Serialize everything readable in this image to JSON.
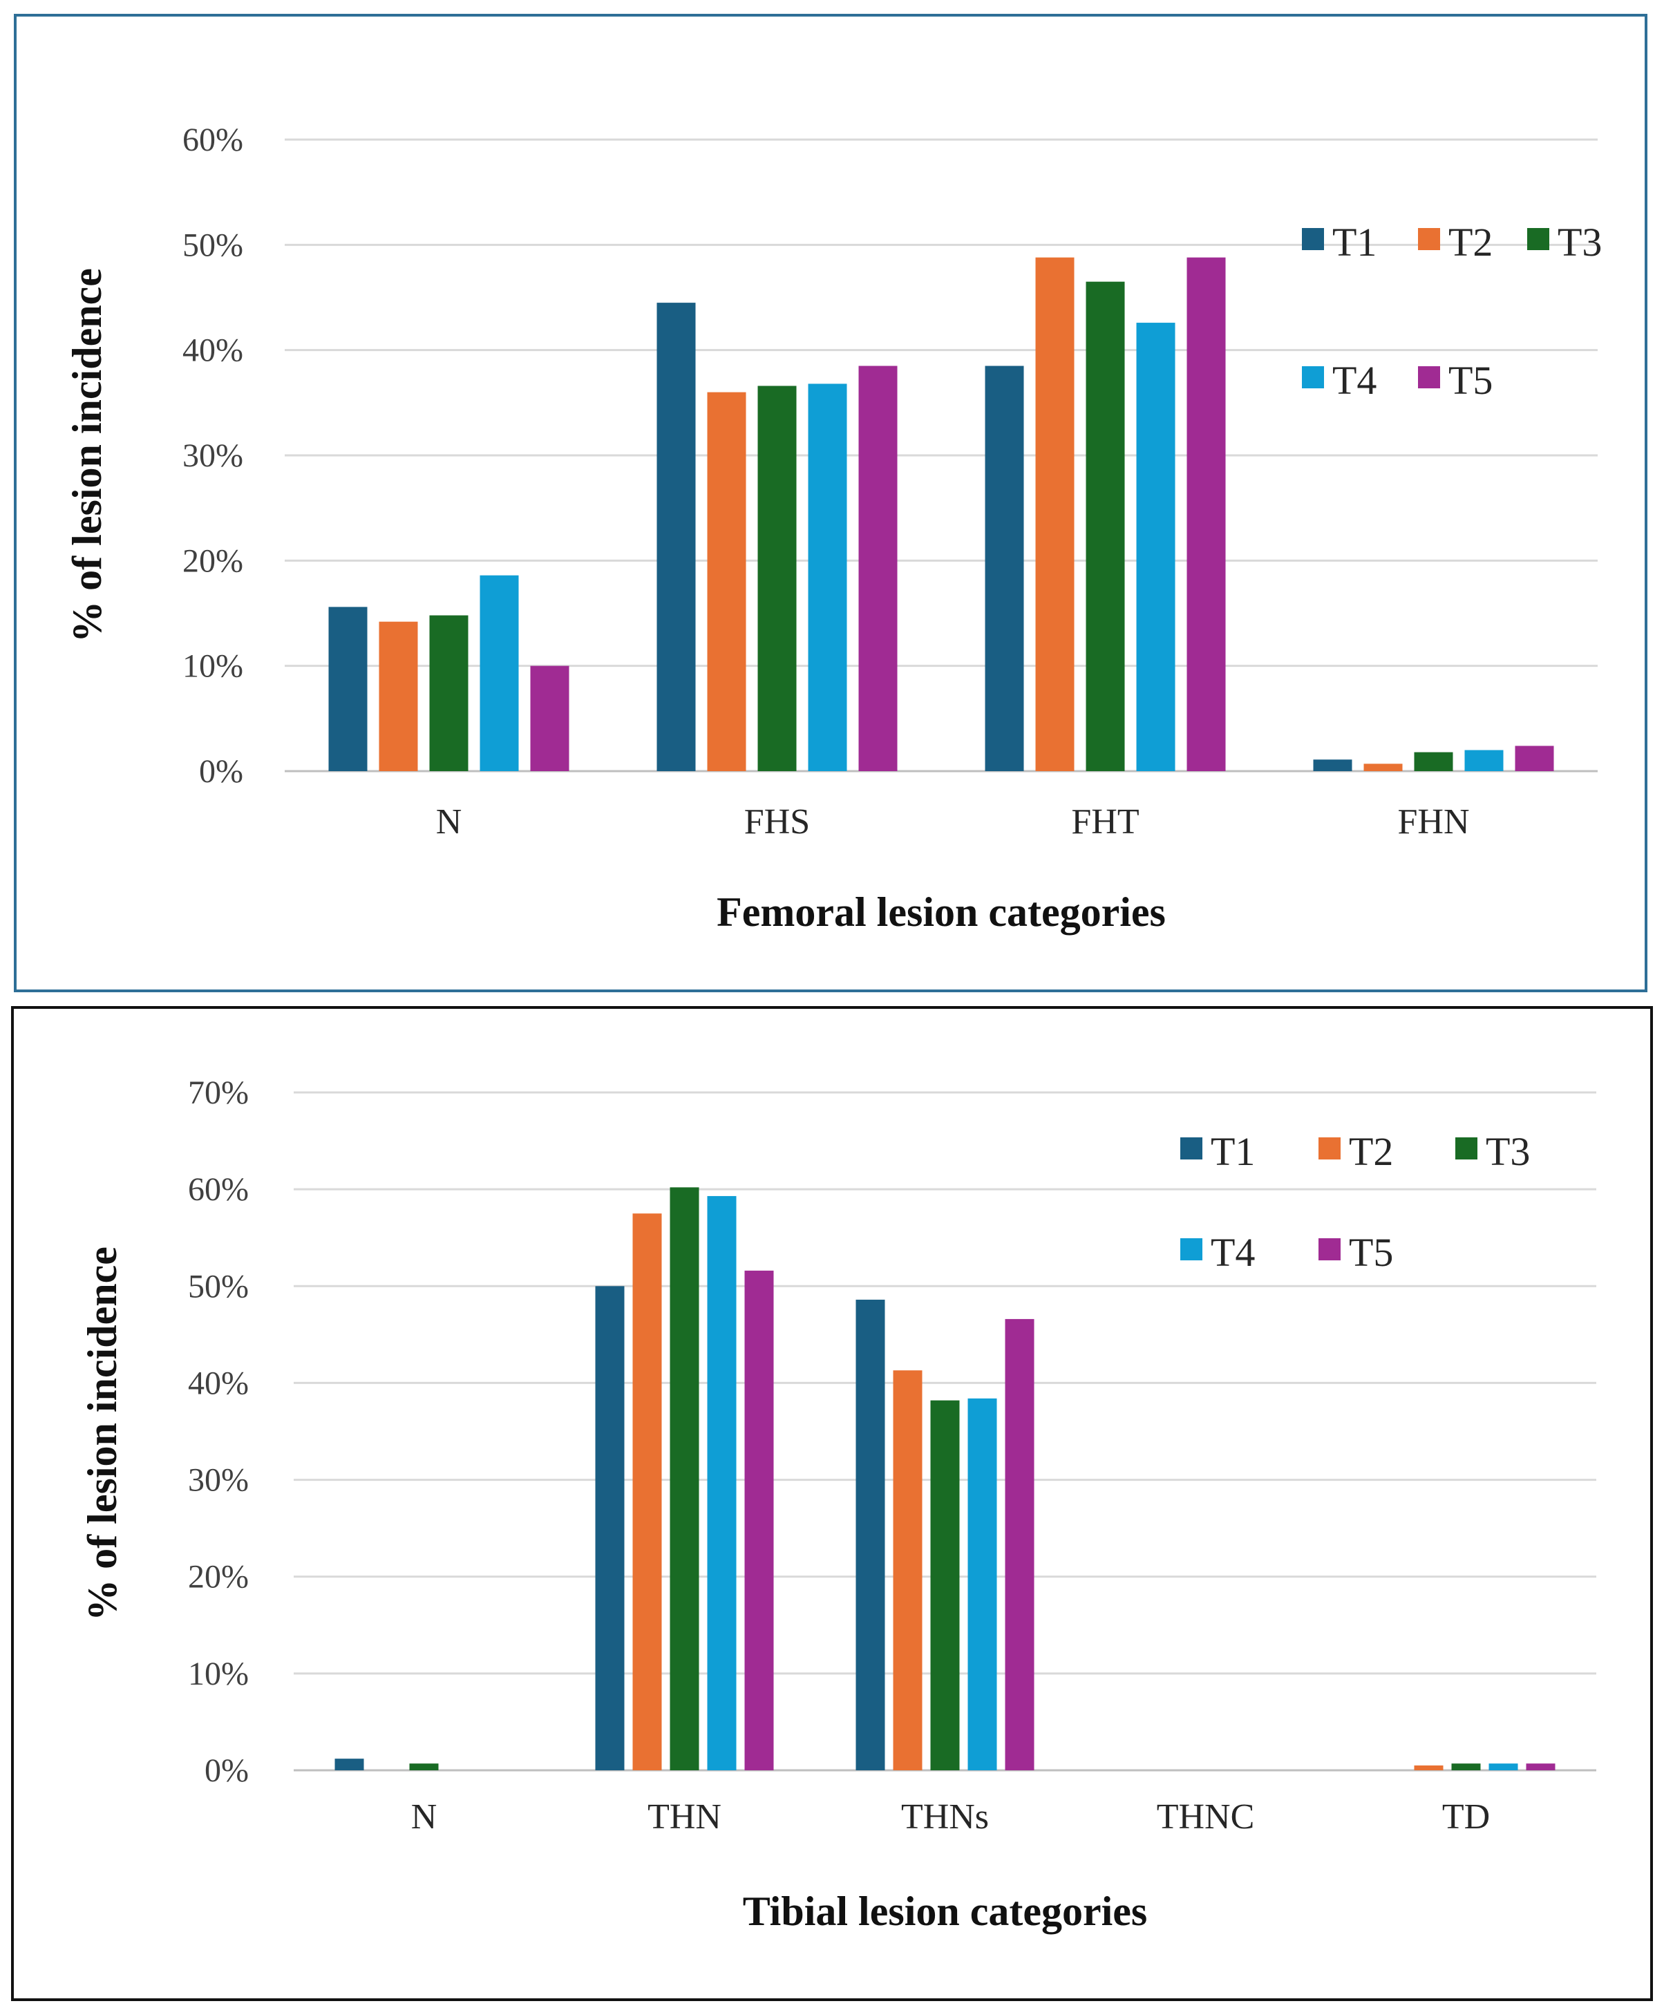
{
  "colors": {
    "T1": "#195e83",
    "T2": "#e97132",
    "T3": "#196b24",
    "T4": "#0f9ed5",
    "T5": "#a02b93",
    "grid": "#d9d9d9",
    "axis": "#bfbfbf"
  },
  "chart_data": [
    {
      "type": "bar",
      "xlabel": "Femoral lesion categories",
      "ylabel": "% of lesion incidence",
      "categories": [
        "N",
        "FHS",
        "FHT",
        "FHN"
      ],
      "ylim": [
        0,
        60
      ],
      "yticks": [
        "0%",
        "10%",
        "20%",
        "30%",
        "40%",
        "50%",
        "60%"
      ],
      "grid": true,
      "legend_position": "right",
      "series": [
        {
          "name": "T1",
          "values": [
            15.6,
            44.5,
            38.5,
            1.1
          ]
        },
        {
          "name": "T2",
          "values": [
            14.2,
            36.0,
            48.8,
            0.7
          ]
        },
        {
          "name": "T3",
          "values": [
            14.8,
            36.6,
            46.5,
            1.8
          ]
        },
        {
          "name": "T4",
          "values": [
            18.6,
            36.8,
            42.6,
            2.0
          ]
        },
        {
          "name": "T5",
          "values": [
            10.0,
            38.5,
            48.8,
            2.4
          ]
        }
      ]
    },
    {
      "type": "bar",
      "xlabel": "Tibial lesion categories",
      "ylabel": "% of lesion incidence",
      "categories": [
        "N",
        "THN",
        "THNs",
        "THNC",
        "TD"
      ],
      "ylim": [
        0,
        70
      ],
      "yticks": [
        "0%",
        "10%",
        "20%",
        "30%",
        "40%",
        "50%",
        "60%",
        "70%"
      ],
      "grid": true,
      "legend_position": "top-right",
      "series": [
        {
          "name": "T1",
          "values": [
            1.2,
            50.0,
            48.6,
            0,
            0
          ]
        },
        {
          "name": "T2",
          "values": [
            0,
            57.5,
            41.3,
            0,
            0.5
          ]
        },
        {
          "name": "T3",
          "values": [
            0.7,
            60.2,
            38.2,
            0,
            0.7
          ]
        },
        {
          "name": "T4",
          "values": [
            0,
            59.3,
            38.4,
            0,
            0.7
          ]
        },
        {
          "name": "T5",
          "values": [
            0,
            51.6,
            46.6,
            0,
            0.7
          ]
        }
      ]
    }
  ]
}
